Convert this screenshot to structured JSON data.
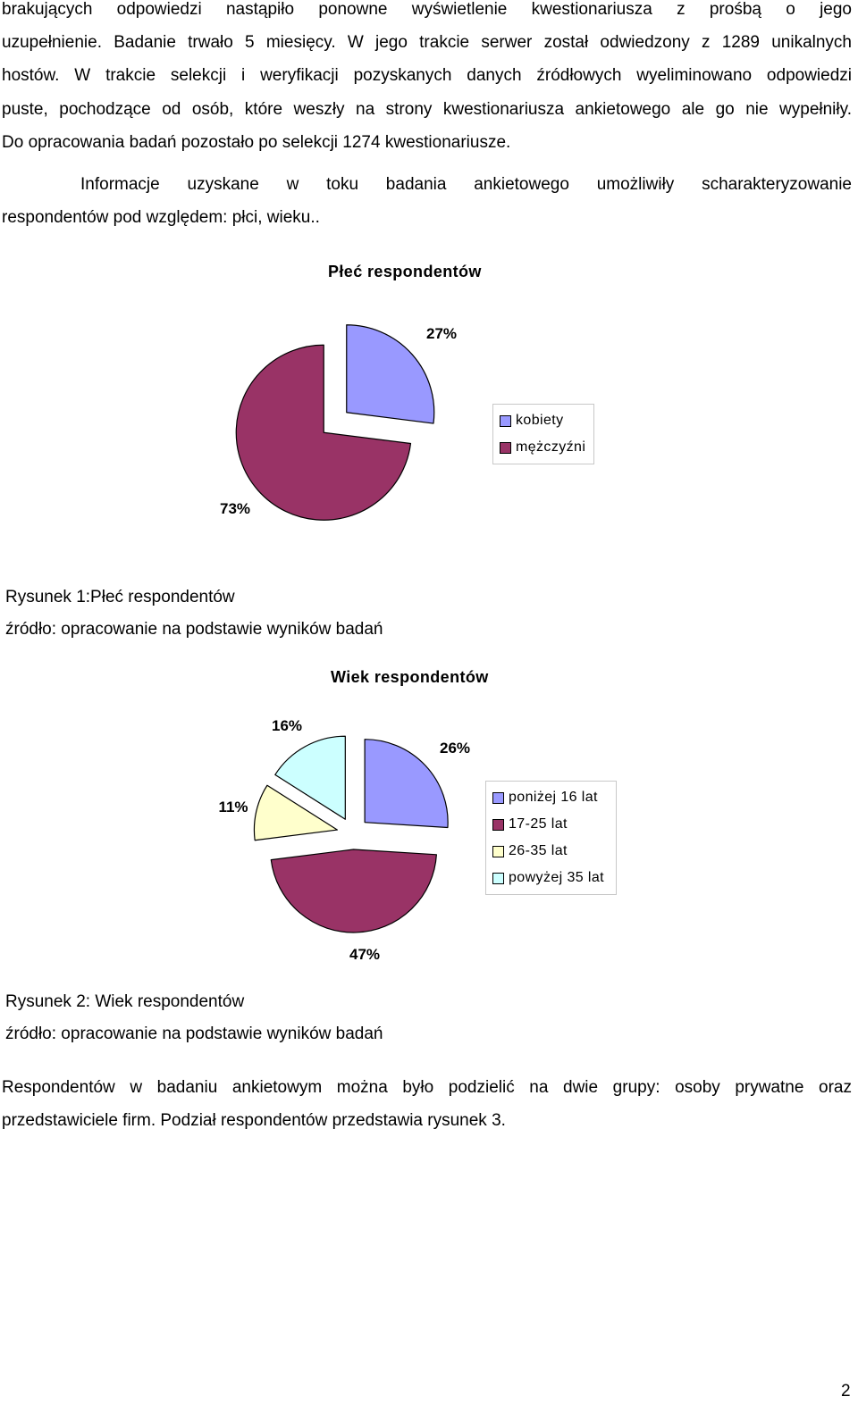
{
  "paragraph1": {
    "lines": [
      "brakujących odpowiedzi nastąpiło ponowne wyświetlenie kwestionariusza z prośbą o jego",
      "uzupełnienie. Badanie trwało 5 miesięcy. W jego trakcie serwer został odwiedzony  z 1289 unikalnych",
      "hostów. W trakcie selekcji i weryfikacji pozyskanych danych źródłowych wyeliminowano odpowiedzi",
      "puste, pochodzące od osób, które weszły na strony kwestionariusza ankietowego ale go nie wypełniły.",
      "Do opracowania badań pozostało po selekcji 1274 kwestionariusze."
    ]
  },
  "paragraph2": {
    "lines": [
      "Informacje uzyskane w toku badania ankietowego umożliwiły scharakteryzowanie",
      "respondentów pod względem: płci, wieku.."
    ]
  },
  "figure1": {
    "caption": "Rysunek 1:Płeć respondentów",
    "source": "źródło: opracowanie na podstawie wyników badań"
  },
  "figure2": {
    "caption": "Rysunek 2: Wiek respondentów",
    "source": "źródło: opracowanie na podstawie wyników badań"
  },
  "paragraph3": {
    "lines": [
      "Respondentów w badaniu ankietowym można było podzielić na dwie grupy: osoby prywatne oraz",
      "przedstawiciele firm. Podział  respondentów przedstawia rysunek 3."
    ]
  },
  "page_number": "2",
  "chart_data": [
    {
      "type": "pie",
      "title": "Płeć respondentów",
      "categories": [
        "kobiety",
        "mężczyźni"
      ],
      "values": [
        27,
        73
      ],
      "labels": [
        "27%",
        "73%"
      ],
      "colors": [
        "#9999ff",
        "#993366"
      ],
      "exploded": true,
      "legend": "right"
    },
    {
      "type": "pie",
      "title": "Wiek respondentów",
      "categories": [
        "poniżej 16 lat",
        "17-25 lat",
        "26-35 lat",
        "powyżej 35 lat"
      ],
      "values": [
        26,
        47,
        11,
        16
      ],
      "labels": [
        "26%",
        "47%",
        "11%",
        "16%"
      ],
      "colors": [
        "#9999ff",
        "#993366",
        "#ffffcc",
        "#ccffff"
      ],
      "exploded": true,
      "legend": "right"
    }
  ]
}
